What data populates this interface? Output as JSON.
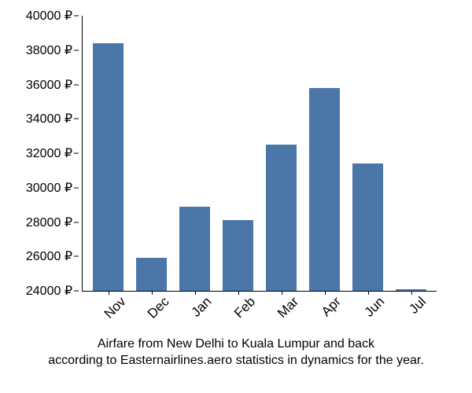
{
  "chart": {
    "type": "bar",
    "categories": [
      "Nov",
      "Dec",
      "Jan",
      "Feb",
      "Mar",
      "Apr",
      "Jun",
      "Jul"
    ],
    "values": [
      38400,
      25900,
      28900,
      28100,
      32500,
      35800,
      31400,
      24100
    ],
    "bar_color": "#4a76a8",
    "background_color": "#ffffff",
    "axis_color": "#000000",
    "text_color": "#000000",
    "ylim_min": 24000,
    "ylim_max": 40000,
    "ytick_step": 2000,
    "yticks": [
      24000,
      26000,
      28000,
      30000,
      32000,
      34000,
      36000,
      38000,
      40000
    ],
    "ytick_labels": [
      "24000 ₽",
      "26000 ₽",
      "28000 ₽",
      "30000 ₽",
      "32000 ₽",
      "34000 ₽",
      "36000 ₽",
      "38000 ₽",
      "40000 ₽"
    ],
    "currency_symbol": "₽",
    "tick_fontsize": 16,
    "xlabel_fontsize": 17,
    "caption_fontsize": 16,
    "bar_width": 0.7,
    "xlabel_rotation": -45,
    "caption_line1": "Airfare from New Delhi to Kuala Lumpur and back",
    "caption_line2": "according to Easternairlines.aero statistics in dynamics for the year."
  }
}
